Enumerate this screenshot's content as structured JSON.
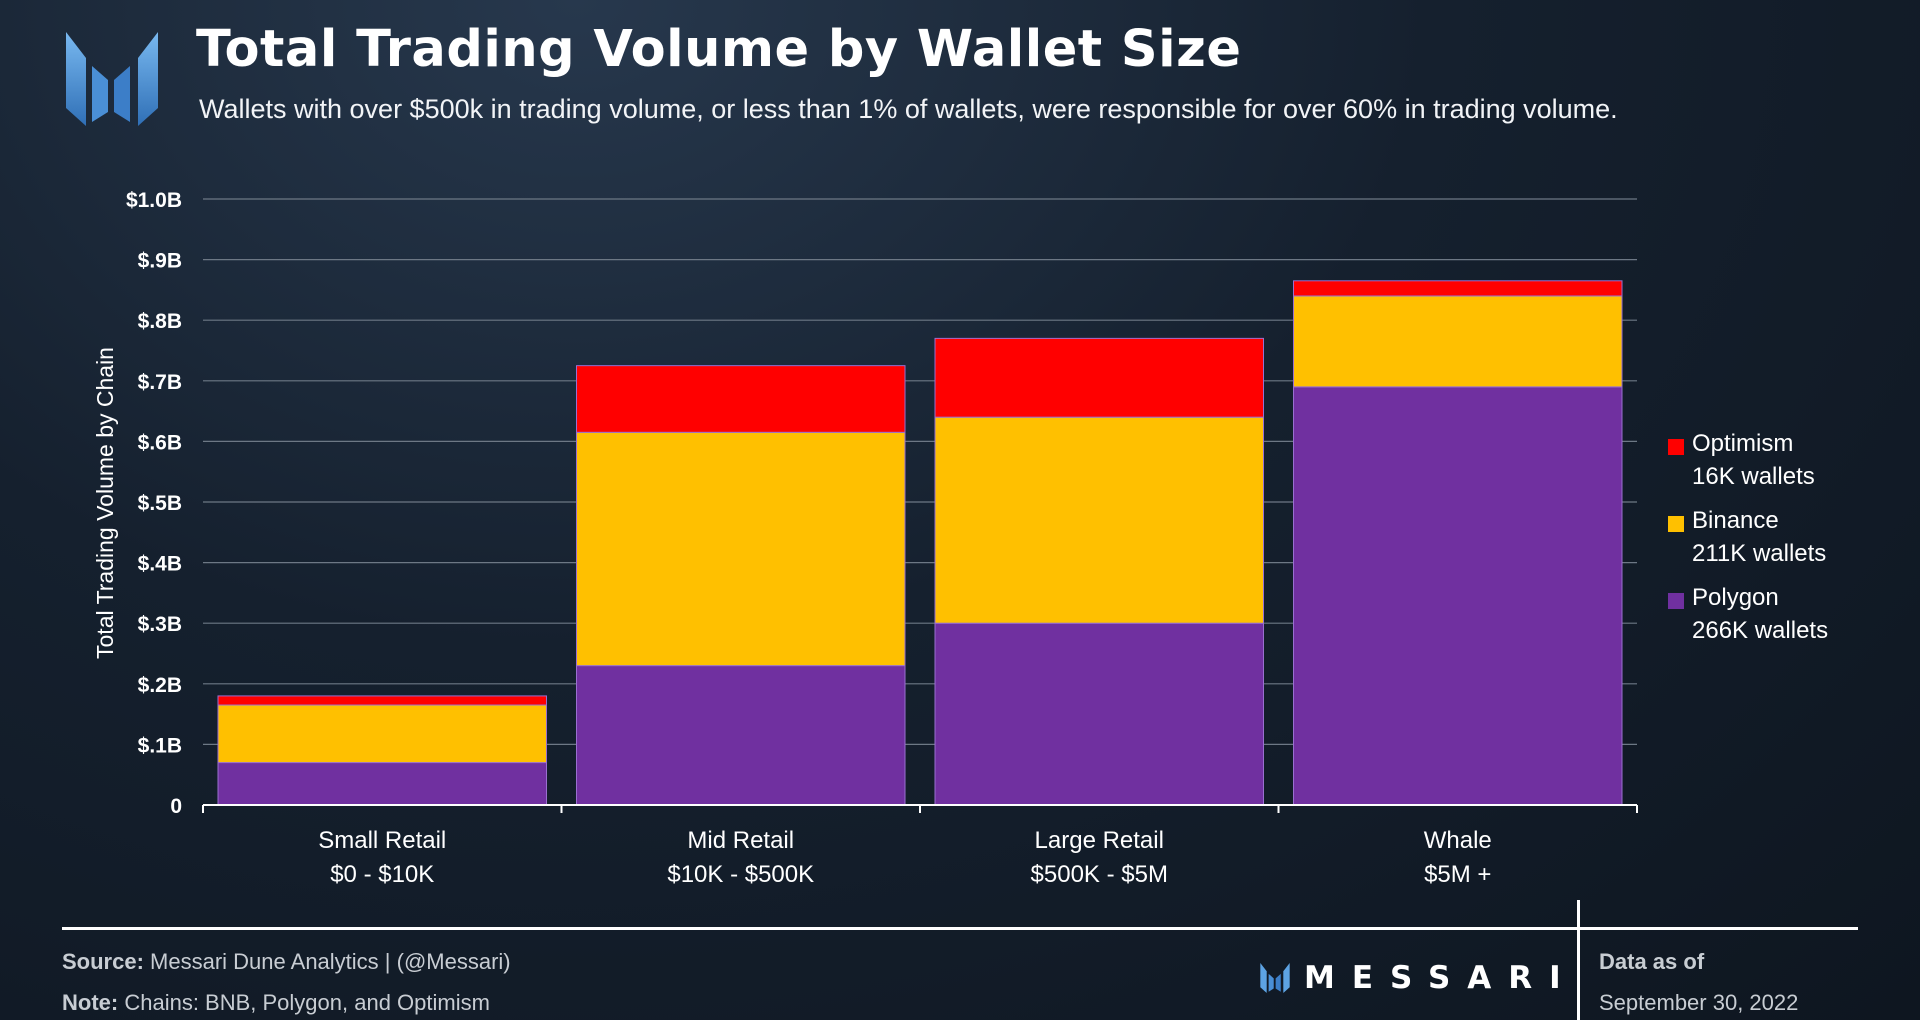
{
  "header": {
    "title": "Total Trading Volume by Wallet Size",
    "subtitle": "Wallets with over $500k in trading volume, or less than 1% of wallets, were responsible for over 60% in trading volume."
  },
  "chart_data": {
    "type": "bar",
    "stacked": true,
    "categories": [
      {
        "name": "Small Retail",
        "range": "$0 - $10K"
      },
      {
        "name": "Mid Retail",
        "range": "$10K - $500K"
      },
      {
        "name": "Large Retail",
        "range": "$500K - $5M"
      },
      {
        "name": "Whale",
        "range": "$5M +"
      }
    ],
    "series": [
      {
        "name": "Polygon",
        "wallets": "266K wallets",
        "color": "#7030a0",
        "values": [
          0.07,
          0.23,
          0.3,
          0.69
        ]
      },
      {
        "name": "Binance",
        "wallets": "211K wallets",
        "color": "#ffc000",
        "values": [
          0.095,
          0.385,
          0.34,
          0.15
        ]
      },
      {
        "name": "Optimism",
        "wallets": "16K wallets",
        "color": "#ff0000",
        "values": [
          0.015,
          0.11,
          0.13,
          0.025
        ]
      }
    ],
    "ylabel": "Total Trading Volume by Chain",
    "ylim": [
      0,
      1.0
    ],
    "yticks": [
      {
        "value": 0,
        "label": "0"
      },
      {
        "value": 0.1,
        "label": "$.1B"
      },
      {
        "value": 0.2,
        "label": "$.2B"
      },
      {
        "value": 0.3,
        "label": "$.3B"
      },
      {
        "value": 0.4,
        "label": "$.4B"
      },
      {
        "value": 0.5,
        "label": "$.5B"
      },
      {
        "value": 0.6,
        "label": "$.6B"
      },
      {
        "value": 0.7,
        "label": "$.7B"
      },
      {
        "value": 0.8,
        "label": "$.8B"
      },
      {
        "value": 0.9,
        "label": "$.9B"
      },
      {
        "value": 1.0,
        "label": "$1.0B"
      }
    ],
    "grid": true,
    "legend_position": "right",
    "legend_order": [
      "Optimism",
      "Binance",
      "Polygon"
    ]
  },
  "footer": {
    "source_label": "Source:",
    "source_text": " Messari Dune Analytics | (@Messari)",
    "note_label": "Note:",
    "note_text": " Chains: BNB, Polygon, and Optimism",
    "brand": "MESSARI",
    "asof_label": "Data as of",
    "asof_date": "September 30, 2022"
  }
}
